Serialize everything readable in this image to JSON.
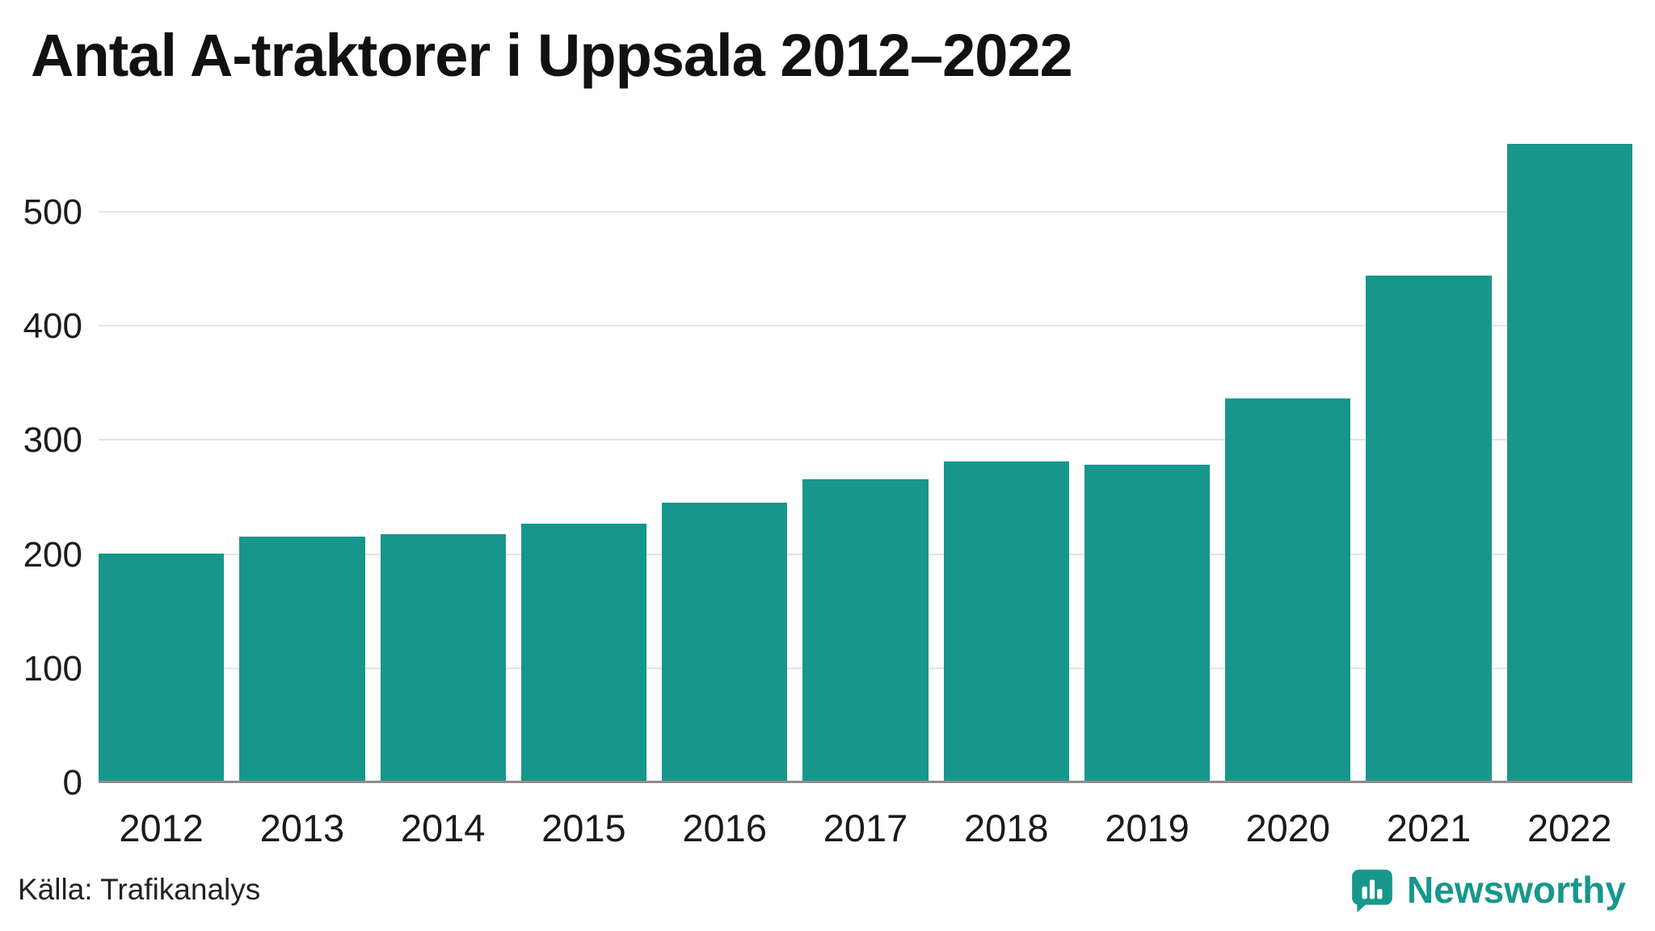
{
  "title": "Antal A-traktorer i Uppsala 2012–2022",
  "source": "Källa: Trafikanalys",
  "branding": {
    "name": "Newsworthy",
    "icon": "newsworthy-logo-icon"
  },
  "colors": {
    "accent": "#17978c",
    "bar": "#17978c",
    "grid": "#e4e4e4",
    "zero_axis": "#8d8d8d",
    "text": "#111111"
  },
  "chart_data": {
    "type": "bar",
    "title": "Antal A-traktorer i Uppsala 2012–2022",
    "categories": [
      "2012",
      "2013",
      "2014",
      "2015",
      "2016",
      "2017",
      "2018",
      "2019",
      "2020",
      "2021",
      "2022"
    ],
    "values": [
      201,
      216,
      218,
      227,
      246,
      266,
      282,
      279,
      337,
      445,
      560
    ],
    "xlabel": "",
    "ylabel": "",
    "ylim": [
      0,
      575
    ],
    "yticks": [
      0,
      100,
      200,
      300,
      400,
      500
    ],
    "grid": true,
    "legend": false,
    "bar_color": "#17978c"
  }
}
